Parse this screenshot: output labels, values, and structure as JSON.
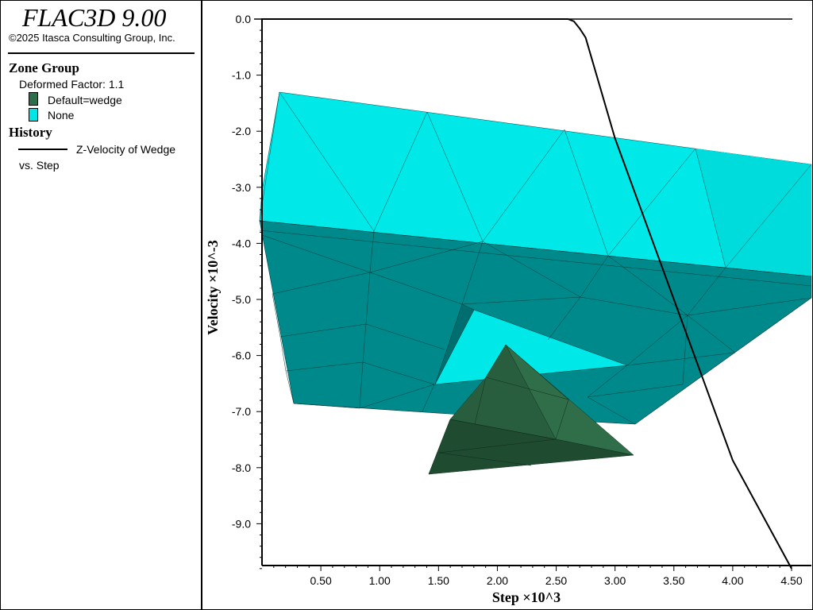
{
  "app": {
    "title": "FLAC3D 9.00",
    "copyright": "©2025 Itasca Consulting Group, Inc."
  },
  "legend": {
    "zone_group": {
      "heading": "Zone Group",
      "deformed_label": "Deformed Factor: 1.1",
      "groups": [
        {
          "label": "Default=wedge",
          "color": "#2e6e4b"
        },
        {
          "label": "None",
          "color": "#00e5e5"
        }
      ]
    },
    "history": {
      "heading": "History",
      "series_label": "Z-Velocity of Wedge",
      "vs_label": "vs. Step"
    }
  },
  "chart_data": {
    "type": "line",
    "xlabel": "Step ×10^3",
    "ylabel": "Velocity ×10^-3",
    "xlim": [
      0,
      4.5
    ],
    "ylim": [
      -9.8,
      0.1
    ],
    "x_ticks": [
      "0.50",
      "1.00",
      "1.50",
      "2.00",
      "2.50",
      "3.00",
      "3.50",
      "4.00",
      "4.50"
    ],
    "y_ticks": [
      "0.0",
      "-1.0",
      "-2.0",
      "-3.0",
      "-4.0",
      "-5.0",
      "-6.0",
      "-7.0",
      "-8.0",
      "-9.0"
    ],
    "series": [
      {
        "name": "Z-Velocity of Wedge",
        "color": "#000000",
        "x": [
          0,
          2.6,
          2.65,
          2.7,
          2.75,
          3.0,
          3.5,
          4.0,
          4.5
        ],
        "y": [
          0,
          0,
          -0.04,
          -0.17,
          -0.33,
          -2.13,
          -5.0,
          -7.87,
          -9.8
        ]
      }
    ],
    "grid": false
  },
  "model": {
    "colors": {
      "cyan_light": "#00e8e8",
      "cyan_side": "#00dada",
      "teal_dark": "#00898a",
      "wedge_light": "#2f6e48",
      "wedge_dark": "#1f4b31"
    }
  }
}
